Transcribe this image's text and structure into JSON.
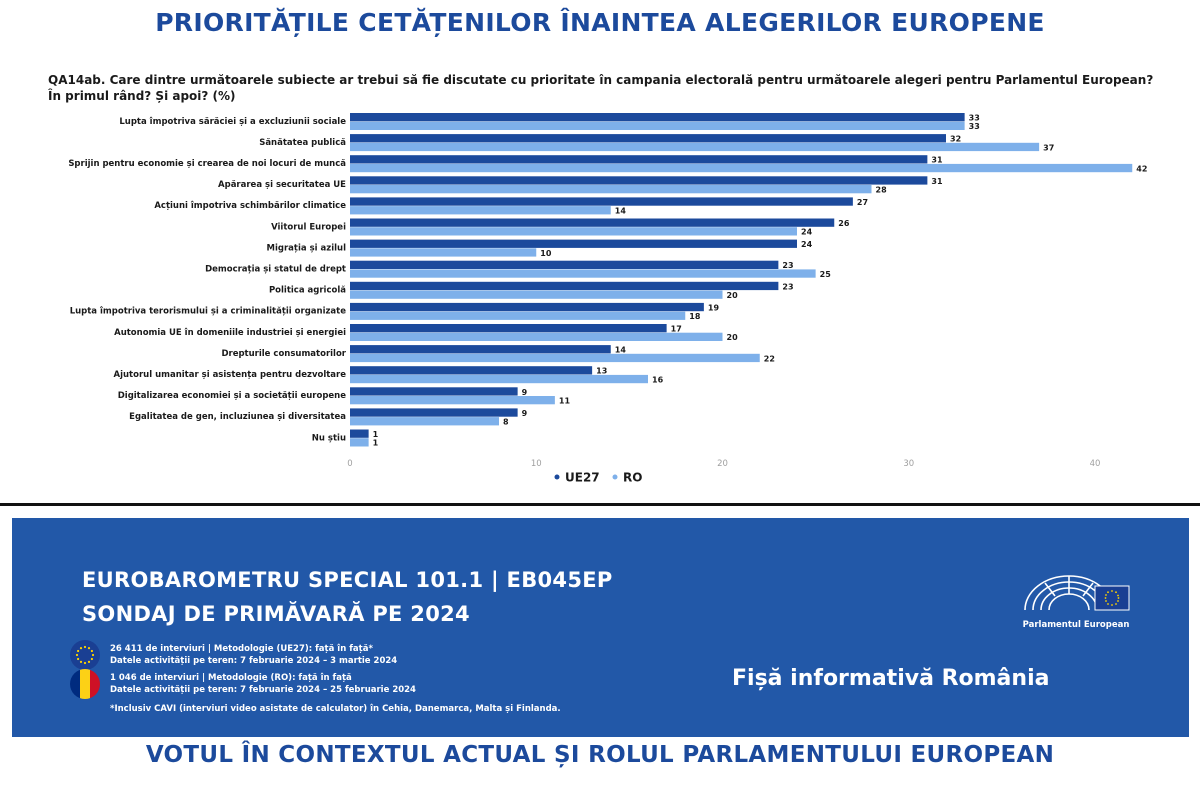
{
  "header": {
    "title": "PRIORITĂȚILE CETĂȚENILOR ÎNAINTEA ALEGERILOR EUROPENE",
    "question": "QA14ab. Care dintre următoarele subiecte ar trebui să fie discutate cu prioritate în campania electorală pentru următoarele alegeri pentru Parlamentul European? În primul rând? Și apoi? (%)"
  },
  "chart_data": {
    "type": "bar",
    "orientation": "horizontal",
    "categories": [
      "Lupta împotriva sărăciei și a excluziunii sociale",
      "Sănătatea publică",
      "Sprijin pentru economie și crearea de noi locuri de muncă",
      "Apărarea și securitatea UE",
      "Acțiuni împotriva schimbărilor climatice",
      "Viitorul Europei",
      "Migrația și azilul",
      "Democrația și statul de drept",
      "Politica agricolă",
      "Lupta împotriva terorismului și a criminalității organizate",
      "Autonomia UE în domeniile industriei și energiei",
      "Drepturile consumatorilor",
      "Ajutorul umanitar și asistența pentru dezvoltare",
      "Digitalizarea economiei și a societății europene",
      "Egalitatea de gen, incluziunea și diversitatea",
      "Nu știu"
    ],
    "series": [
      {
        "name": "UE27",
        "color": "#1c4a9c",
        "values": [
          33,
          32,
          31,
          31,
          27,
          26,
          24,
          23,
          23,
          19,
          17,
          14,
          13,
          9,
          9,
          1
        ]
      },
      {
        "name": "RO",
        "color": "#7eb0ea",
        "values": [
          33,
          37,
          42,
          28,
          14,
          24,
          10,
          25,
          20,
          18,
          20,
          22,
          16,
          11,
          8,
          1
        ]
      }
    ],
    "xlim": [
      0,
      43
    ],
    "xticks": [
      0,
      10,
      20,
      30,
      40
    ],
    "legend": "bottom-center",
    "grid": false
  },
  "banner": {
    "title_line1": "EUROBAROMETRU SPECIAL 101.1 | EB045EP",
    "title_line2": "SONDAJ DE PRIMĂVARĂ PE 2024",
    "eu_line1": "26 411 de interviuri | Metodologie (UE27): față în față*",
    "eu_line2": "Datele activității pe teren: 7 februarie 2024 – 3 martie 2024",
    "ro_line1": "1 046 de interviuri | Metodologie (RO): față în față",
    "ro_line2": "Datele activității pe teren: 7 februarie 2024 – 25 februarie 2024",
    "footnote": "*Inclusiv CAVI (interviuri video asistate de calculator) în Cehia, Danemarca, Malta și Finlanda.",
    "logo_label": "Parlamentul European",
    "fisa": "Fișă informativă România"
  },
  "footer": {
    "title": "VOTUL ÎN CONTEXTUL ACTUAL ȘI ROLUL PARLAMENTULUI EUROPEAN"
  },
  "icons": {
    "eu_flag": "eu-flag-icon",
    "ro_flag": "romania-flag-icon",
    "ep_logo": "european-parliament-logo"
  },
  "colors": {
    "brand_blue": "#1c4a9c",
    "banner_blue": "#2258a8",
    "ro_series": "#7eb0ea"
  }
}
